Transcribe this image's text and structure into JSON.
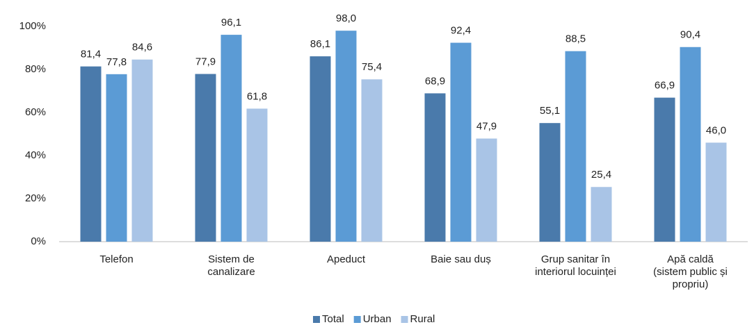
{
  "chart_data": {
    "type": "bar",
    "categories": [
      "Telefon",
      "Sistem de\ncanalizare",
      "Apeduct",
      "Baie sau duș",
      "Grup sanitar în\ninteriorul locuinței",
      "Apă caldă\n(sistem public și\npropriu)"
    ],
    "series": [
      {
        "name": "Total",
        "color": "#4a7aab",
        "values": [
          81.4,
          77.9,
          86.1,
          68.9,
          55.1,
          66.9
        ],
        "value_labels": [
          "81,4",
          "77,9",
          "86,1",
          "68,9",
          "55,1",
          "66,9"
        ]
      },
      {
        "name": "Urban",
        "color": "#5b9bd5",
        "values": [
          77.8,
          96.1,
          98.0,
          92.4,
          88.5,
          90.4
        ],
        "value_labels": [
          "77,8",
          "96,1",
          "98,0",
          "92,4",
          "88,5",
          "90,4"
        ]
      },
      {
        "name": "Rural",
        "color": "#a9c4e6",
        "values": [
          84.6,
          61.8,
          75.4,
          47.9,
          25.4,
          46.0
        ],
        "value_labels": [
          "84,6",
          "61,8",
          "75,4",
          "47,9",
          "25,4",
          "46,0"
        ]
      }
    ],
    "ylim": [
      0,
      100
    ],
    "yticks": [
      {
        "value": 0,
        "label": "0%"
      },
      {
        "value": 20,
        "label": "20%"
      },
      {
        "value": 40,
        "label": "40%"
      },
      {
        "value": 60,
        "label": "60%"
      },
      {
        "value": 80,
        "label": "80%"
      },
      {
        "value": 100,
        "label": "100%"
      }
    ],
    "legend": "bottom"
  }
}
